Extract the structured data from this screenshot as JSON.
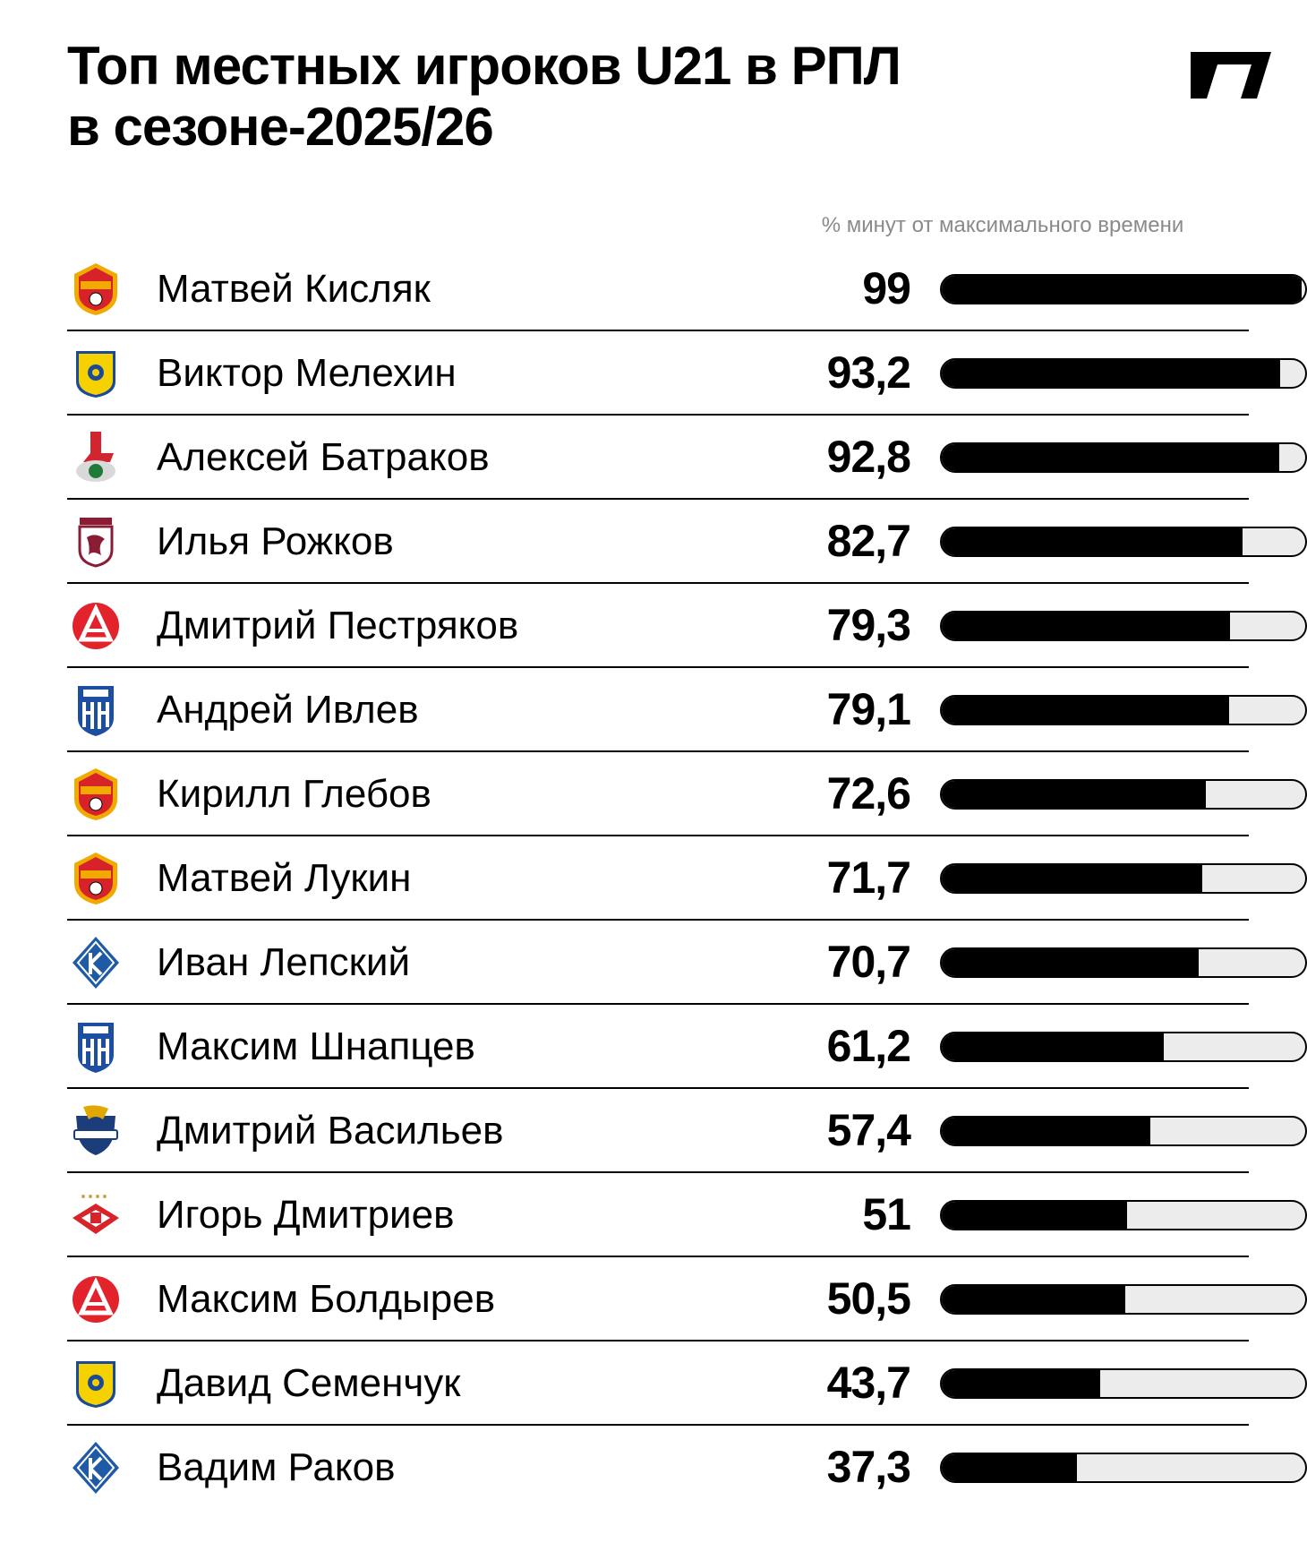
{
  "title": {
    "line1": "Топ местных игроков U21 в РПЛ",
    "line2": "в сезоне-2025/26"
  },
  "chart_data": {
    "type": "bar",
    "orientation": "horizontal",
    "subtitle": "% минут от максимального времени",
    "xlim": [
      0,
      100
    ],
    "rows": [
      {
        "name": "Матвей Кисляк",
        "value": 99,
        "label": "99",
        "club_icon": "cska-crest-icon"
      },
      {
        "name": "Виктор Мелехин",
        "value": 93.2,
        "label": "93,2",
        "club_icon": "rostov-crest-icon"
      },
      {
        "name": "Алексей Батраков",
        "value": 92.8,
        "label": "92,8",
        "club_icon": "lokomotiv-crest-icon"
      },
      {
        "name": "Илья Рожков",
        "value": 82.7,
        "label": "82,7",
        "club_icon": "rubin-crest-icon"
      },
      {
        "name": "Дмитрий Пестряков",
        "value": 79.3,
        "label": "79,3",
        "club_icon": "akron-crest-icon"
      },
      {
        "name": "Андрей Ивлев",
        "value": 79.1,
        "label": "79,1",
        "club_icon": "pari-nn-crest-icon"
      },
      {
        "name": "Кирилл Глебов",
        "value": 72.6,
        "label": "72,6",
        "club_icon": "cska-crest-icon"
      },
      {
        "name": "Матвей Лукин",
        "value": 71.7,
        "label": "71,7",
        "club_icon": "cska-crest-icon"
      },
      {
        "name": "Иван Лепский",
        "value": 70.7,
        "label": "70,7",
        "club_icon": "krylia-crest-icon"
      },
      {
        "name": "Максим Шнапцев",
        "value": 61.2,
        "label": "61,2",
        "club_icon": "pari-nn-crest-icon"
      },
      {
        "name": "Дмитрий Васильев",
        "value": 57.4,
        "label": "57,4",
        "club_icon": "sochi-crest-icon"
      },
      {
        "name": "Игорь Дмитриев",
        "value": 51,
        "label": "51",
        "club_icon": "spartak-crest-icon"
      },
      {
        "name": "Максим Болдырев",
        "value": 50.5,
        "label": "50,5",
        "club_icon": "akron-crest-icon"
      },
      {
        "name": "Давид Семенчук",
        "value": 43.7,
        "label": "43,7",
        "club_icon": "rostov-crest-icon"
      },
      {
        "name": "Вадим Раков",
        "value": 37.3,
        "label": "37,3",
        "club_icon": "krylia-crest-icon"
      }
    ]
  },
  "colors": {
    "bar_fill": "#000000",
    "bar_track": "#ececec",
    "subtitle": "#8a8a8a",
    "cska": "#d8222a",
    "cska_gold": "#f2a900",
    "rostov": "#f5d100",
    "rostov_blue": "#1b4a9a",
    "lokomotiv": "#d12630",
    "lokomotiv_green": "#1f7a3a",
    "rubin": "#8a1c34",
    "akron": "#e3232c",
    "pari_nn": "#1c4fa1",
    "krylia": "#1f5aa6",
    "sochi": "#1b3e7a",
    "sochi_gold": "#e0a800",
    "spartak": "#d8232a"
  },
  "brand_icon": "sports-ru-logo-icon"
}
